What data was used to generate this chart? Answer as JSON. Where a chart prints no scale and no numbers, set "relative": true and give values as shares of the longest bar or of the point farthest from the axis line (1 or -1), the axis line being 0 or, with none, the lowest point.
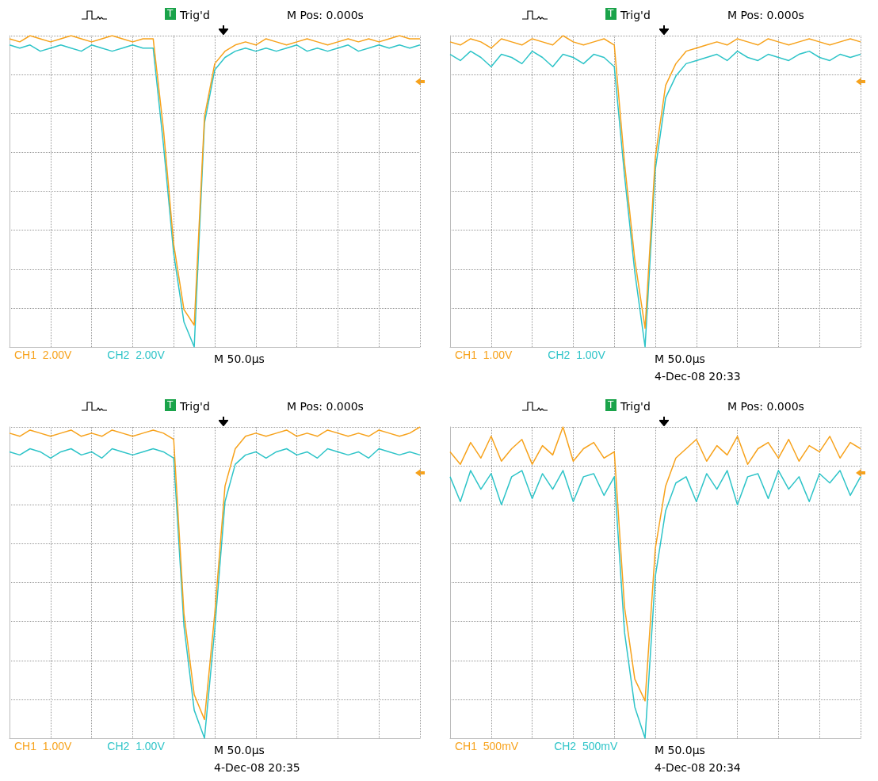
{
  "chart_data": [
    {
      "type": "line",
      "relative": true,
      "grid": true,
      "legend": "bottom",
      "marker": "none",
      "categories": [
        null,
        null,
        null,
        null,
        null,
        null,
        null,
        null,
        null,
        null,
        null,
        null,
        null,
        null,
        null,
        null,
        null,
        null,
        null,
        null,
        null,
        null,
        null,
        null,
        null,
        null,
        null,
        null,
        null,
        null,
        null,
        null,
        null,
        null,
        null,
        null,
        null,
        null,
        null,
        null,
        null
      ],
      "series": [
        {
          "name": "CH1  2.00V",
          "color": "#f7a21b",
          "values": [
            0.99,
            0.98,
            1,
            0.99,
            0.98,
            0.99,
            1,
            0.99,
            0.98,
            0.99,
            1,
            0.99,
            0.98,
            0.99,
            0.99,
            0.7,
            0.33,
            0.12,
            0.07,
            0.74,
            0.91,
            0.95,
            0.97,
            0.98,
            0.97,
            0.99,
            0.98,
            0.97,
            0.98,
            0.99,
            0.98,
            0.97,
            0.98,
            0.99,
            0.98,
            0.99,
            0.98,
            0.99,
            1,
            0.99,
            0.99
          ]
        },
        {
          "name": "CH2  2.00V",
          "color": "#2ec4c8",
          "values": [
            0.97,
            0.96,
            0.97,
            0.95,
            0.96,
            0.97,
            0.96,
            0.95,
            0.97,
            0.96,
            0.95,
            0.96,
            0.97,
            0.96,
            0.96,
            0.65,
            0.3,
            0.08,
            0,
            0.72,
            0.89,
            0.93,
            0.95,
            0.96,
            0.95,
            0.96,
            0.95,
            0.96,
            0.97,
            0.95,
            0.96,
            0.95,
            0.96,
            0.97,
            0.95,
            0.96,
            0.97,
            0.96,
            0.97,
            0.96,
            0.97
          ]
        }
      ],
      "annotations": [
        "T",
        "Trig'd",
        "M Pos: 0.000s",
        "M 50.0µs"
      ]
    },
    {
      "type": "line",
      "relative": true,
      "grid": true,
      "legend": "bottom",
      "marker": "none",
      "categories": [
        null,
        null,
        null,
        null,
        null,
        null,
        null,
        null,
        null,
        null,
        null,
        null,
        null,
        null,
        null,
        null,
        null,
        null,
        null,
        null,
        null,
        null,
        null,
        null,
        null,
        null,
        null,
        null,
        null,
        null,
        null,
        null,
        null,
        null,
        null,
        null,
        null,
        null,
        null,
        null,
        null
      ],
      "series": [
        {
          "name": "CH1  1.00V",
          "color": "#f7a21b",
          "values": [
            0.98,
            0.97,
            0.99,
            0.98,
            0.96,
            0.99,
            0.98,
            0.97,
            0.99,
            0.98,
            0.97,
            1,
            0.98,
            0.97,
            0.98,
            0.99,
            0.97,
            0.59,
            0.28,
            0.06,
            0.61,
            0.84,
            0.91,
            0.95,
            0.96,
            0.97,
            0.98,
            0.97,
            0.99,
            0.98,
            0.97,
            0.99,
            0.98,
            0.97,
            0.98,
            0.99,
            0.98,
            0.97,
            0.98,
            0.99,
            0.98
          ]
        },
        {
          "name": "CH2  1.00V",
          "color": "#2ec4c8",
          "values": [
            0.94,
            0.92,
            0.95,
            0.93,
            0.9,
            0.94,
            0.93,
            0.91,
            0.95,
            0.93,
            0.9,
            0.94,
            0.93,
            0.91,
            0.94,
            0.93,
            0.9,
            0.55,
            0.24,
            0,
            0.57,
            0.8,
            0.87,
            0.91,
            0.92,
            0.93,
            0.94,
            0.92,
            0.95,
            0.93,
            0.92,
            0.94,
            0.93,
            0.92,
            0.94,
            0.95,
            0.93,
            0.92,
            0.94,
            0.93,
            0.94
          ]
        }
      ],
      "annotations": [
        "T",
        "Trig'd",
        "M Pos: 0.000s",
        "M 50.0µs",
        "4-Dec-08 20:33"
      ]
    },
    {
      "type": "line",
      "relative": true,
      "grid": true,
      "legend": "bottom",
      "marker": "none",
      "categories": [
        null,
        null,
        null,
        null,
        null,
        null,
        null,
        null,
        null,
        null,
        null,
        null,
        null,
        null,
        null,
        null,
        null,
        null,
        null,
        null,
        null,
        null,
        null,
        null,
        null,
        null,
        null,
        null,
        null,
        null,
        null,
        null,
        null,
        null,
        null,
        null,
        null,
        null,
        null,
        null,
        null
      ],
      "series": [
        {
          "name": "CH1  1.00V",
          "color": "#f7a21b",
          "values": [
            0.98,
            0.97,
            0.99,
            0.98,
            0.97,
            0.98,
            0.99,
            0.97,
            0.98,
            0.97,
            0.99,
            0.98,
            0.97,
            0.98,
            0.99,
            0.98,
            0.96,
            0.4,
            0.14,
            0.06,
            0.4,
            0.81,
            0.93,
            0.97,
            0.98,
            0.97,
            0.98,
            0.99,
            0.97,
            0.98,
            0.97,
            0.99,
            0.98,
            0.97,
            0.98,
            0.97,
            0.99,
            0.98,
            0.97,
            0.98,
            1
          ]
        },
        {
          "name": "CH2  1.00V",
          "color": "#2ec4c8",
          "values": [
            0.92,
            0.91,
            0.93,
            0.92,
            0.9,
            0.92,
            0.93,
            0.91,
            0.92,
            0.9,
            0.93,
            0.92,
            0.91,
            0.92,
            0.93,
            0.92,
            0.9,
            0.36,
            0.09,
            0,
            0.35,
            0.76,
            0.88,
            0.91,
            0.92,
            0.9,
            0.92,
            0.93,
            0.91,
            0.92,
            0.9,
            0.93,
            0.92,
            0.91,
            0.92,
            0.9,
            0.93,
            0.92,
            0.91,
            0.92,
            0.91
          ]
        }
      ],
      "annotations": [
        "T",
        "Trig'd",
        "M Pos: 0.000s",
        "M 50.0µs",
        "4-Dec-08 20:35"
      ]
    },
    {
      "type": "line",
      "relative": true,
      "grid": true,
      "legend": "bottom",
      "marker": "none",
      "categories": [
        null,
        null,
        null,
        null,
        null,
        null,
        null,
        null,
        null,
        null,
        null,
        null,
        null,
        null,
        null,
        null,
        null,
        null,
        null,
        null,
        null,
        null,
        null,
        null,
        null,
        null,
        null,
        null,
        null,
        null,
        null,
        null,
        null,
        null,
        null,
        null,
        null,
        null,
        null,
        null,
        null
      ],
      "series": [
        {
          "name": "CH1  500mV",
          "color": "#f7a21b",
          "values": [
            0.92,
            0.88,
            0.95,
            0.9,
            0.97,
            0.89,
            0.93,
            0.96,
            0.88,
            0.94,
            0.91,
            1,
            0.89,
            0.93,
            0.95,
            0.9,
            0.92,
            0.42,
            0.19,
            0.12,
            0.61,
            0.81,
            0.9,
            0.93,
            0.96,
            0.89,
            0.94,
            0.91,
            0.97,
            0.88,
            0.93,
            0.95,
            0.9,
            0.96,
            0.89,
            0.94,
            0.92,
            0.97,
            0.9,
            0.95,
            0.93
          ]
        },
        {
          "name": "CH2  500mV",
          "color": "#2ec4c8",
          "values": [
            0.84,
            0.76,
            0.86,
            0.8,
            0.85,
            0.75,
            0.84,
            0.86,
            0.77,
            0.85,
            0.8,
            0.86,
            0.76,
            0.84,
            0.85,
            0.78,
            0.84,
            0.34,
            0.1,
            0,
            0.52,
            0.73,
            0.82,
            0.84,
            0.76,
            0.85,
            0.8,
            0.86,
            0.75,
            0.84,
            0.85,
            0.77,
            0.86,
            0.8,
            0.84,
            0.76,
            0.85,
            0.82,
            0.86,
            0.78,
            0.84
          ]
        }
      ],
      "annotations": [
        "T",
        "Trig'd",
        "M Pos: 0.000s",
        "M 50.0µs",
        "4-Dec-08 20:34"
      ]
    }
  ]
}
